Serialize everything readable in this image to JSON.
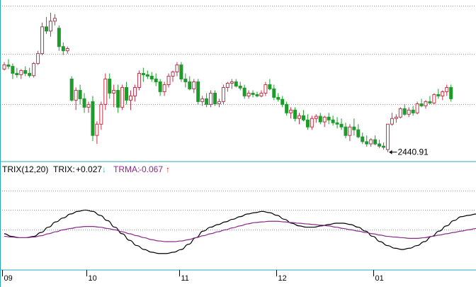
{
  "chart_data": [
    {
      "type": "candlestick",
      "panel": "price",
      "colors": {
        "up": "#c0334a",
        "down": "#1f9b2c",
        "grid": "#999999"
      },
      "y_range_price": [
        2410,
        2980
      ],
      "grid_levels_price": [
        2960,
        2790,
        2610
      ],
      "annotation": {
        "text": "2440.91",
        "value": 2440.91,
        "candle_index": 91
      },
      "candles": [
        [
          2735,
          2760,
          2730,
          2750
        ],
        [
          2750,
          2770,
          2735,
          2745
        ],
        [
          2745,
          2755,
          2700,
          2720
        ],
        [
          2720,
          2740,
          2705,
          2715
        ],
        [
          2715,
          2735,
          2700,
          2730
        ],
        [
          2730,
          2745,
          2710,
          2720
        ],
        [
          2720,
          2740,
          2705,
          2712
        ],
        [
          2712,
          2760,
          2705,
          2755
        ],
        [
          2755,
          2800,
          2750,
          2790
        ],
        [
          2790,
          2900,
          2785,
          2885
        ],
        [
          2885,
          2920,
          2860,
          2870
        ],
        [
          2870,
          2935,
          2850,
          2905
        ],
        [
          2905,
          2930,
          2890,
          2915
        ],
        [
          2880,
          2890,
          2800,
          2815
        ],
        [
          2815,
          2830,
          2785,
          2800
        ],
        [
          2800,
          2815,
          2790,
          2808
        ],
        [
          2700,
          2710,
          2620,
          2625
        ],
        [
          2625,
          2670,
          2590,
          2660
        ],
        [
          2660,
          2680,
          2610,
          2630
        ],
        [
          2630,
          2650,
          2580,
          2600
        ],
        [
          2600,
          2620,
          2580,
          2610
        ],
        [
          2620,
          2640,
          2480,
          2500
        ],
        [
          2500,
          2550,
          2470,
          2540
        ],
        [
          2540,
          2620,
          2520,
          2610
        ],
        [
          2610,
          2720,
          2590,
          2700
        ],
        [
          2700,
          2720,
          2630,
          2650
        ],
        [
          2650,
          2680,
          2600,
          2660
        ],
        [
          2660,
          2680,
          2580,
          2600
        ],
        [
          2600,
          2680,
          2590,
          2670
        ],
        [
          2670,
          2690,
          2610,
          2625
        ],
        [
          2625,
          2660,
          2590,
          2640
        ],
        [
          2640,
          2680,
          2620,
          2670
        ],
        [
          2670,
          2730,
          2660,
          2720
        ],
        [
          2720,
          2740,
          2690,
          2715
        ],
        [
          2715,
          2730,
          2700,
          2710
        ],
        [
          2710,
          2725,
          2690,
          2700
        ],
        [
          2700,
          2720,
          2675,
          2690
        ],
        [
          2690,
          2700,
          2640,
          2655
        ],
        [
          2655,
          2690,
          2640,
          2680
        ],
        [
          2680,
          2720,
          2670,
          2710
        ],
        [
          2710,
          2730,
          2690,
          2725
        ],
        [
          2725,
          2760,
          2710,
          2750
        ],
        [
          2750,
          2760,
          2690,
          2700
        ],
        [
          2700,
          2720,
          2670,
          2690
        ],
        [
          2690,
          2710,
          2660,
          2665
        ],
        [
          2665,
          2700,
          2650,
          2690
        ],
        [
          2690,
          2700,
          2610,
          2620
        ],
        [
          2620,
          2640,
          2605,
          2630
        ],
        [
          2630,
          2650,
          2600,
          2610
        ],
        [
          2610,
          2660,
          2600,
          2650
        ],
        [
          2650,
          2660,
          2605,
          2612
        ],
        [
          2612,
          2630,
          2600,
          2620
        ],
        [
          2620,
          2680,
          2610,
          2670
        ],
        [
          2670,
          2690,
          2655,
          2685
        ],
        [
          2685,
          2700,
          2665,
          2690
        ],
        [
          2690,
          2700,
          2670,
          2675
        ],
        [
          2675,
          2690,
          2660,
          2668
        ],
        [
          2668,
          2680,
          2630,
          2640
        ],
        [
          2640,
          2660,
          2630,
          2650
        ],
        [
          2650,
          2660,
          2635,
          2645
        ],
        [
          2645,
          2655,
          2635,
          2640
        ],
        [
          2640,
          2660,
          2635,
          2650
        ],
        [
          2650,
          2690,
          2640,
          2680
        ],
        [
          2680,
          2700,
          2660,
          2665
        ],
        [
          2665,
          2680,
          2625,
          2635
        ],
        [
          2635,
          2650,
          2620,
          2628
        ],
        [
          2628,
          2640,
          2600,
          2610
        ],
        [
          2610,
          2620,
          2570,
          2580
        ],
        [
          2580,
          2600,
          2560,
          2590
        ],
        [
          2590,
          2600,
          2550,
          2560
        ],
        [
          2560,
          2580,
          2540,
          2570
        ],
        [
          2570,
          2590,
          2550,
          2555
        ],
        [
          2555,
          2575,
          2520,
          2530
        ],
        [
          2530,
          2570,
          2520,
          2560
        ],
        [
          2560,
          2575,
          2545,
          2568
        ],
        [
          2568,
          2580,
          2540,
          2548
        ],
        [
          2548,
          2570,
          2530,
          2565
        ],
        [
          2565,
          2580,
          2540,
          2555
        ],
        [
          2555,
          2570,
          2535,
          2545
        ],
        [
          2545,
          2565,
          2525,
          2540
        ],
        [
          2540,
          2560,
          2520,
          2530
        ],
        [
          2530,
          2545,
          2490,
          2500
        ],
        [
          2500,
          2540,
          2480,
          2530
        ],
        [
          2530,
          2560,
          2500,
          2520
        ],
        [
          2520,
          2540,
          2490,
          2495
        ],
        [
          2495,
          2510,
          2470,
          2478
        ],
        [
          2478,
          2500,
          2460,
          2470
        ],
        [
          2470,
          2490,
          2460,
          2485
        ],
        [
          2485,
          2500,
          2465,
          2470
        ],
        [
          2470,
          2485,
          2455,
          2462
        ],
        [
          2462,
          2475,
          2450,
          2458
        ],
        [
          2450,
          2540,
          2440.91,
          2540
        ],
        [
          2540,
          2580,
          2535,
          2560
        ],
        [
          2560,
          2575,
          2545,
          2565
        ],
        [
          2565,
          2600,
          2560,
          2595
        ],
        [
          2595,
          2610,
          2570,
          2575
        ],
        [
          2575,
          2600,
          2565,
          2590
        ],
        [
          2590,
          2605,
          2570,
          2580
        ],
        [
          2580,
          2620,
          2575,
          2612
        ],
        [
          2612,
          2630,
          2600,
          2605
        ],
        [
          2605,
          2625,
          2595,
          2620
        ],
        [
          2620,
          2640,
          2610,
          2615
        ],
        [
          2615,
          2650,
          2610,
          2645
        ],
        [
          2645,
          2665,
          2630,
          2640
        ],
        [
          2640,
          2660,
          2625,
          2655
        ],
        [
          2655,
          2680,
          2640,
          2670
        ],
        [
          2670,
          2680,
          2620,
          2630
        ]
      ],
      "x_ticks": [
        {
          "label": "09",
          "index": 0
        },
        {
          "label": "10",
          "index": 20
        },
        {
          "label": "11",
          "index": 42
        },
        {
          "label": "12",
          "index": 65
        },
        {
          "label": "01",
          "index": 88
        }
      ]
    },
    {
      "type": "line",
      "panel": "indicator",
      "legend": {
        "name": "TRIX(12,20)",
        "trix_label": "TRIX:",
        "trix_value": "+0.027",
        "trix_arrow": "↓",
        "trma_label": "TRMA:",
        "trma_value": "-0.067",
        "trma_arrow": "↑"
      },
      "y_range": [
        -0.3,
        0.4
      ],
      "grid_levels": [
        0.3,
        0.15,
        0.0
      ],
      "series": [
        {
          "key": "trix",
          "color": "#000000",
          "values": [
            -0.03,
            -0.05,
            -0.06,
            -0.06,
            -0.05,
            -0.02,
            0.02,
            0.06,
            0.09,
            0.12,
            0.14,
            0.15,
            0.14,
            0.11,
            0.07,
            0.02,
            -0.03,
            -0.08,
            -0.12,
            -0.15,
            -0.17,
            -0.18,
            -0.18,
            -0.17,
            -0.15,
            -0.11,
            -0.06,
            -0.01,
            0.02,
            0.04,
            0.06,
            0.08,
            0.1,
            0.12,
            0.13,
            0.14,
            0.13,
            0.11,
            0.08,
            0.05,
            0.03,
            0.02,
            0.02,
            0.03,
            0.04,
            0.05,
            0.05,
            0.04,
            0.02,
            -0.01,
            -0.05,
            -0.09,
            -0.12,
            -0.14,
            -0.15,
            -0.14,
            -0.12,
            -0.09,
            -0.05,
            -0.01,
            0.03,
            0.07,
            0.1,
            0.11,
            0.12
          ]
        },
        {
          "key": "trma",
          "color": "#8a2a8a",
          "values": [
            -0.05,
            -0.055,
            -0.06,
            -0.06,
            -0.055,
            -0.045,
            -0.03,
            -0.015,
            0.0,
            0.01,
            0.02,
            0.025,
            0.025,
            0.02,
            0.01,
            0.0,
            -0.015,
            -0.03,
            -0.045,
            -0.06,
            -0.075,
            -0.085,
            -0.09,
            -0.09,
            -0.085,
            -0.075,
            -0.06,
            -0.045,
            -0.03,
            -0.015,
            0.0,
            0.015,
            0.03,
            0.045,
            0.055,
            0.06,
            0.065,
            0.065,
            0.06,
            0.055,
            0.05,
            0.045,
            0.04,
            0.035,
            0.03,
            0.02,
            0.01,
            0.0,
            -0.01,
            -0.02,
            -0.03,
            -0.04,
            -0.05,
            -0.055,
            -0.06,
            -0.065,
            -0.065,
            -0.06,
            -0.05,
            -0.04,
            -0.03,
            -0.02,
            -0.01,
            0.0,
            0.01
          ]
        }
      ]
    }
  ]
}
